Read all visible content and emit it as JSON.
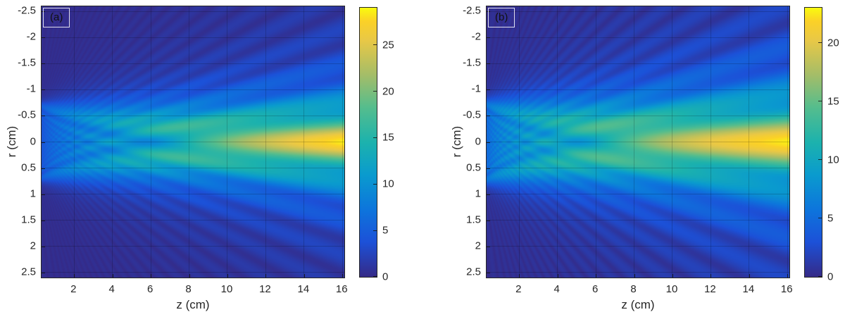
{
  "figure": {
    "background": "#ffffff"
  },
  "style": {
    "axis_color": "#262626",
    "grid_color": "rgba(0,0,0,0.18)",
    "panel_box_border": "rgba(255,255,255,0.85)"
  },
  "colormap": {
    "name": "parula",
    "stops": [
      [
        0.0,
        "#352a87"
      ],
      [
        0.13,
        "#1c51d8"
      ],
      [
        0.25,
        "#0d75dc"
      ],
      [
        0.38,
        "#0a9bce"
      ],
      [
        0.5,
        "#1cb2ad"
      ],
      [
        0.63,
        "#55bd8d"
      ],
      [
        0.75,
        "#a4bd68"
      ],
      [
        0.88,
        "#e9c846"
      ],
      [
        0.95,
        "#fbd127"
      ],
      [
        1.0,
        "#f9fb0e"
      ]
    ]
  },
  "chart_data": [
    {
      "id": "a",
      "type": "heatmap",
      "panel_label": "(a)",
      "xlabel": "z (cm)",
      "ylabel": "r (cm)",
      "x_range": [
        0.3,
        16.1
      ],
      "y_range": [
        -2.6,
        2.6
      ],
      "x_ticks": [
        2,
        4,
        6,
        8,
        10,
        12,
        14,
        16
      ],
      "y_ticks": [
        -2.5,
        -2,
        -1.5,
        -1,
        -0.5,
        0,
        0.5,
        1,
        1.5,
        2,
        2.5
      ],
      "grid": true,
      "colorbar": {
        "min": 0,
        "max": 29,
        "ticks": [
          0,
          5,
          10,
          15,
          20,
          25
        ]
      },
      "field_model": {
        "kind": "circular-piston-beam",
        "aperture_half_width_cm": 0.8,
        "wavelength_cm": 0.062,
        "last_axial_max_cm": 10.3,
        "peak_value": 28.5,
        "near_gain": 0.35,
        "far_gain": 0.65,
        "z_power": 0.8,
        "gamma": 1.15
      }
    },
    {
      "id": "b",
      "type": "heatmap",
      "panel_label": "(b)",
      "xlabel": "z (cm)",
      "ylabel": "r (cm)",
      "x_range": [
        0.3,
        16.1
      ],
      "y_range": [
        -2.6,
        2.6
      ],
      "x_ticks": [
        2,
        4,
        6,
        8,
        10,
        12,
        14,
        16
      ],
      "y_ticks": [
        -2.5,
        -2,
        -1.5,
        -1,
        -0.5,
        0,
        0.5,
        1,
        1.5,
        2,
        2.5
      ],
      "grid": true,
      "colorbar": {
        "min": 0,
        "max": 23,
        "ticks": [
          0,
          5,
          10,
          15,
          20
        ]
      },
      "field_model": {
        "kind": "circular-piston-beam",
        "aperture_half_width_cm": 0.85,
        "wavelength_cm": 0.08,
        "last_axial_max_cm": 9.0,
        "peak_value": 22.6,
        "near_gain": 0.42,
        "far_gain": 0.58,
        "z_power": 0.8,
        "gamma": 1.05
      }
    }
  ]
}
